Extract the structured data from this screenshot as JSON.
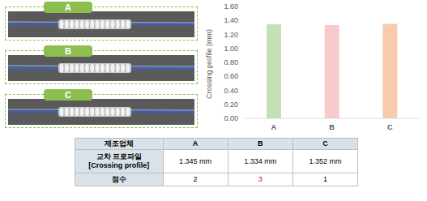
{
  "panels": [
    {
      "label": "A"
    },
    {
      "label": "B"
    },
    {
      "label": "C"
    }
  ],
  "chart_data": {
    "type": "bar",
    "categories": [
      "A",
      "B",
      "C"
    ],
    "values": [
      1.345,
      1.334,
      1.352
    ],
    "colors": [
      "#c5e0b4",
      "#f8cbcb",
      "#f8cbad"
    ],
    "ylabel": "Crossing profile (mm)",
    "ylim": [
      0,
      1.6
    ],
    "yticks": [
      {
        "value": 0,
        "label": "0.00"
      },
      {
        "value": 0.2,
        "label": "0.20"
      },
      {
        "value": 0.4,
        "label": "0.40"
      },
      {
        "value": 0.6,
        "label": "0.60"
      },
      {
        "value": 0.8,
        "label": "0.80"
      },
      {
        "value": 1.0,
        "label": "1.00"
      },
      {
        "value": 1.2,
        "label": "1.20"
      },
      {
        "value": 1.4,
        "label": "1.40"
      },
      {
        "value": 1.6,
        "label": "1.60"
      }
    ],
    "grid": false
  },
  "table": {
    "header": [
      "제조업체",
      "A",
      "B",
      "C"
    ],
    "rows": [
      [
        "교차 프로파일\n[Crossing profile]",
        "1.345 mm",
        "1.334 mm",
        "1.352 mm"
      ],
      [
        "점수",
        "2",
        "3",
        "1"
      ]
    ]
  }
}
